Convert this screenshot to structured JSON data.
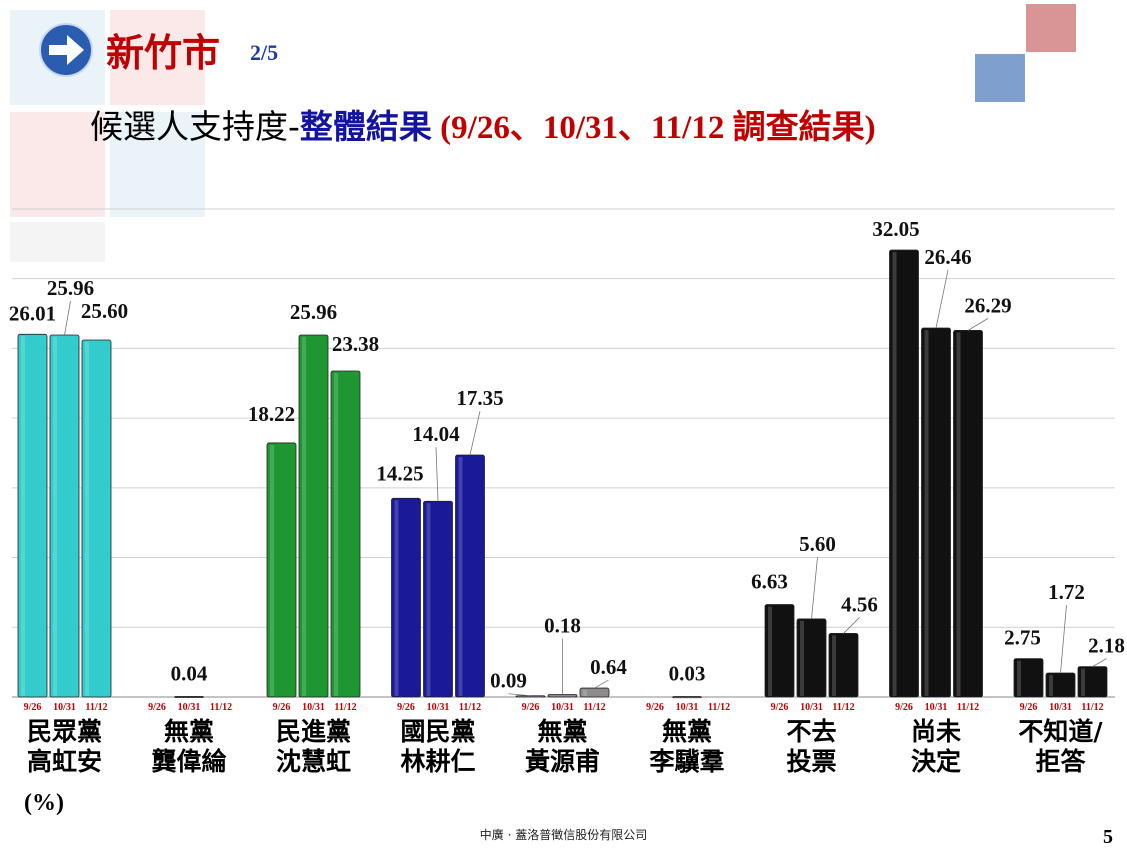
{
  "header": {
    "title": "新竹市",
    "page_fraction": "2/5",
    "subtitle_part1": "候選人支持度-",
    "subtitle_part2": "整體結果",
    "subtitle_part3": " (9/26、10/31、11/12 調查結果)"
  },
  "footer": {
    "company": "中廣 · 蓋洛普徵信股份有限公司",
    "page_number": "5"
  },
  "chart_data": {
    "type": "bar",
    "unit_label": "(%)",
    "ylim": [
      0,
      36
    ],
    "waves": [
      "9/26",
      "10/31",
      "11/12"
    ],
    "categories": [
      {
        "line1": "民眾黨",
        "line2": "高虹安",
        "color": "#33cccc",
        "values": [
          26.01,
          25.96,
          25.6
        ],
        "labels": [
          "26.01",
          "25.96",
          "25.60"
        ]
      },
      {
        "line1": "無黨",
        "line2": "龔偉綸",
        "color": "#999999",
        "values": [
          0,
          0.04,
          0
        ],
        "labels": [
          "",
          "0.04",
          ""
        ]
      },
      {
        "line1": "民進黨",
        "line2": "沈慧虹",
        "color": "#1e9632",
        "values": [
          18.22,
          25.96,
          23.38
        ],
        "labels": [
          "18.22",
          "25.96",
          "23.38"
        ]
      },
      {
        "line1": "國民黨",
        "line2": "林耕仁",
        "color": "#1a1a99",
        "values": [
          14.25,
          14.04,
          17.35
        ],
        "labels": [
          "14.25",
          "14.04",
          "17.35"
        ]
      },
      {
        "line1": "無黨",
        "line2": "黃源甫",
        "color": "#8c8c8c",
        "values": [
          0.09,
          0.18,
          0.64
        ],
        "labels": [
          "0.09",
          "0.18",
          "0.64"
        ]
      },
      {
        "line1": "無黨",
        "line2": "李驥羣",
        "color": "#999999",
        "values": [
          0,
          0.03,
          0
        ],
        "labels": [
          "",
          "0.03",
          ""
        ]
      },
      {
        "line1": "不去",
        "line2": "投票",
        "color": "#111111",
        "values": [
          6.63,
          5.6,
          4.56
        ],
        "labels": [
          "6.63",
          "5.60",
          "4.56"
        ]
      },
      {
        "line1": "尚未",
        "line2": "決定",
        "color": "#111111",
        "values": [
          32.05,
          26.46,
          26.29
        ],
        "labels": [
          "32.05",
          "26.46",
          "26.29"
        ]
      },
      {
        "line1": "不知道/",
        "line2": "拒答",
        "color": "#111111",
        "values": [
          2.75,
          1.72,
          2.18
        ],
        "labels": [
          "2.75",
          "1.72",
          "2.18"
        ]
      }
    ],
    "colors": {
      "wave_label": "#c00000",
      "grid": "#d0d0d0"
    }
  }
}
